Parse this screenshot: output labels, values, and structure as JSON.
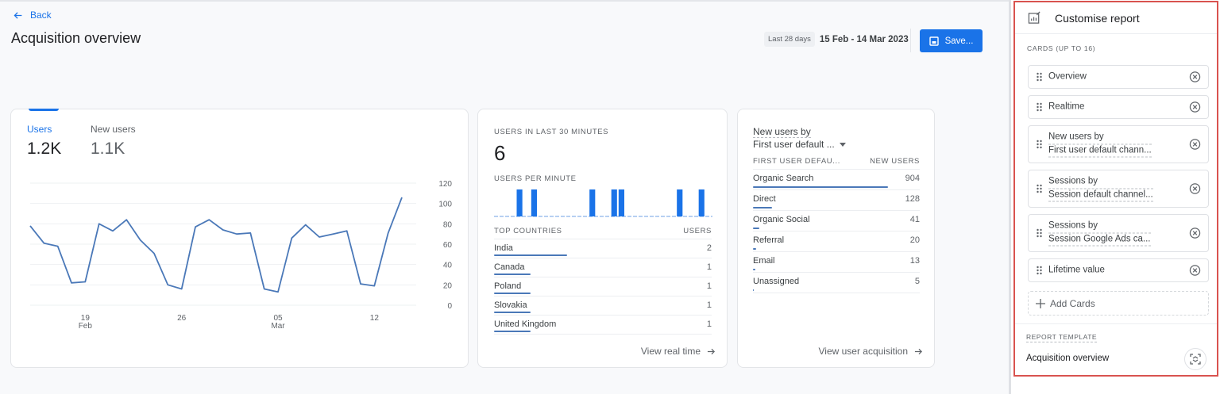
{
  "header": {
    "back_label": "Back",
    "page_title": "Acquisition overview",
    "date_chip": "Last 28 days",
    "date_range": "15 Feb - 14 Mar 2023",
    "save_label": "Save..."
  },
  "users_card": {
    "metrics": [
      {
        "label": "Users",
        "value": "1.2K",
        "active": true
      },
      {
        "label": "New users",
        "value": "1.1K",
        "active": false
      }
    ]
  },
  "realtime_card": {
    "title": "USERS IN LAST 30 MINUTES",
    "value": "6",
    "per_minute_label": "USERS PER MINUTE",
    "table_header": {
      "col1": "TOP COUNTRIES",
      "col2": "USERS"
    },
    "rows": [
      {
        "name": "India",
        "value": "2",
        "bar": 92
      },
      {
        "name": "Canada",
        "value": "1",
        "bar": 46
      },
      {
        "name": "Poland",
        "value": "1",
        "bar": 46
      },
      {
        "name": "Slovakia",
        "value": "1",
        "bar": 46
      },
      {
        "name": "United Kingdom",
        "value": "1",
        "bar": 46
      }
    ],
    "link_label": "View real time"
  },
  "new_users_card": {
    "title_line1": "New users by",
    "title_line2": "First user default ...",
    "table_header": {
      "col1": "FIRST USER DEFAU...",
      "col2": "NEW USERS"
    },
    "rows": [
      {
        "name": "Organic Search",
        "value": "904",
        "bar": 170
      },
      {
        "name": "Direct",
        "value": "128",
        "bar": 24
      },
      {
        "name": "Organic Social",
        "value": "41",
        "bar": 8
      },
      {
        "name": "Referral",
        "value": "20",
        "bar": 4
      },
      {
        "name": "Email",
        "value": "13",
        "bar": 3
      },
      {
        "name": "Unassigned",
        "value": "5",
        "bar": 1
      }
    ],
    "link_label": "View user acquisition"
  },
  "panel": {
    "title": "Customise report",
    "cards_label": "CARDS (UP TO 16)",
    "cards": [
      {
        "line1": "Overview",
        "line2": ""
      },
      {
        "line1": "Realtime",
        "line2": ""
      },
      {
        "line1": "New users by",
        "line2": "First user default chann..."
      },
      {
        "line1": "Sessions by",
        "line2": "Session default channel..."
      },
      {
        "line1": "Sessions by",
        "line2": "Session Google Ads ca..."
      },
      {
        "line1": "Lifetime value",
        "line2": ""
      }
    ],
    "add_cards_label": "Add Cards",
    "template_label": "REPORT TEMPLATE",
    "template_name": "Acquisition overview"
  },
  "colors": {
    "accent": "#1a73e8",
    "line": "#4a78b8",
    "highlight_border": "#d9534f"
  },
  "chart_data": [
    {
      "type": "line",
      "title": "Users",
      "x": [
        "15 Feb",
        "16 Feb",
        "17 Feb",
        "18 Feb",
        "19 Feb",
        "20 Feb",
        "21 Feb",
        "22 Feb",
        "23 Feb",
        "24 Feb",
        "25 Feb",
        "26 Feb",
        "27 Feb",
        "28 Feb",
        "01 Mar",
        "02 Mar",
        "03 Mar",
        "04 Mar",
        "05 Mar",
        "06 Mar",
        "07 Mar",
        "08 Mar",
        "09 Mar",
        "10 Mar",
        "11 Mar",
        "12 Mar",
        "13 Mar",
        "14 Mar"
      ],
      "series": [
        {
          "name": "Users",
          "values": [
            78,
            61,
            58,
            22,
            23,
            80,
            73,
            84,
            64,
            51,
            20,
            16,
            77,
            84,
            74,
            70,
            71,
            16,
            13,
            66,
            79,
            67,
            70,
            73,
            21,
            19,
            71,
            106
          ]
        }
      ],
      "x_tick_labels": [
        "19 Feb",
        "26",
        "05 Mar",
        "12"
      ],
      "y_tick_labels": [
        "0",
        "20",
        "40",
        "60",
        "80",
        "100",
        "120"
      ],
      "ylim": [
        0,
        120
      ],
      "grid": true,
      "y_axis_position": "right"
    },
    {
      "type": "bar",
      "title": "USERS PER MINUTE",
      "categories": [
        "-30",
        "-29",
        "-28",
        "-27",
        "-26",
        "-25",
        "-24",
        "-23",
        "-22",
        "-21",
        "-20",
        "-19",
        "-18",
        "-17",
        "-16",
        "-15",
        "-14",
        "-13",
        "-12",
        "-11",
        "-10",
        "-9",
        "-8",
        "-7",
        "-6",
        "-5",
        "-4",
        "-3",
        "-2",
        "-1"
      ],
      "values": [
        0,
        0,
        0,
        1,
        0,
        1,
        0,
        0,
        0,
        0,
        0,
        0,
        0,
        1,
        0,
        0,
        1,
        1,
        0,
        0,
        0,
        0,
        0,
        0,
        0,
        1,
        0,
        0,
        1,
        0
      ]
    }
  ]
}
